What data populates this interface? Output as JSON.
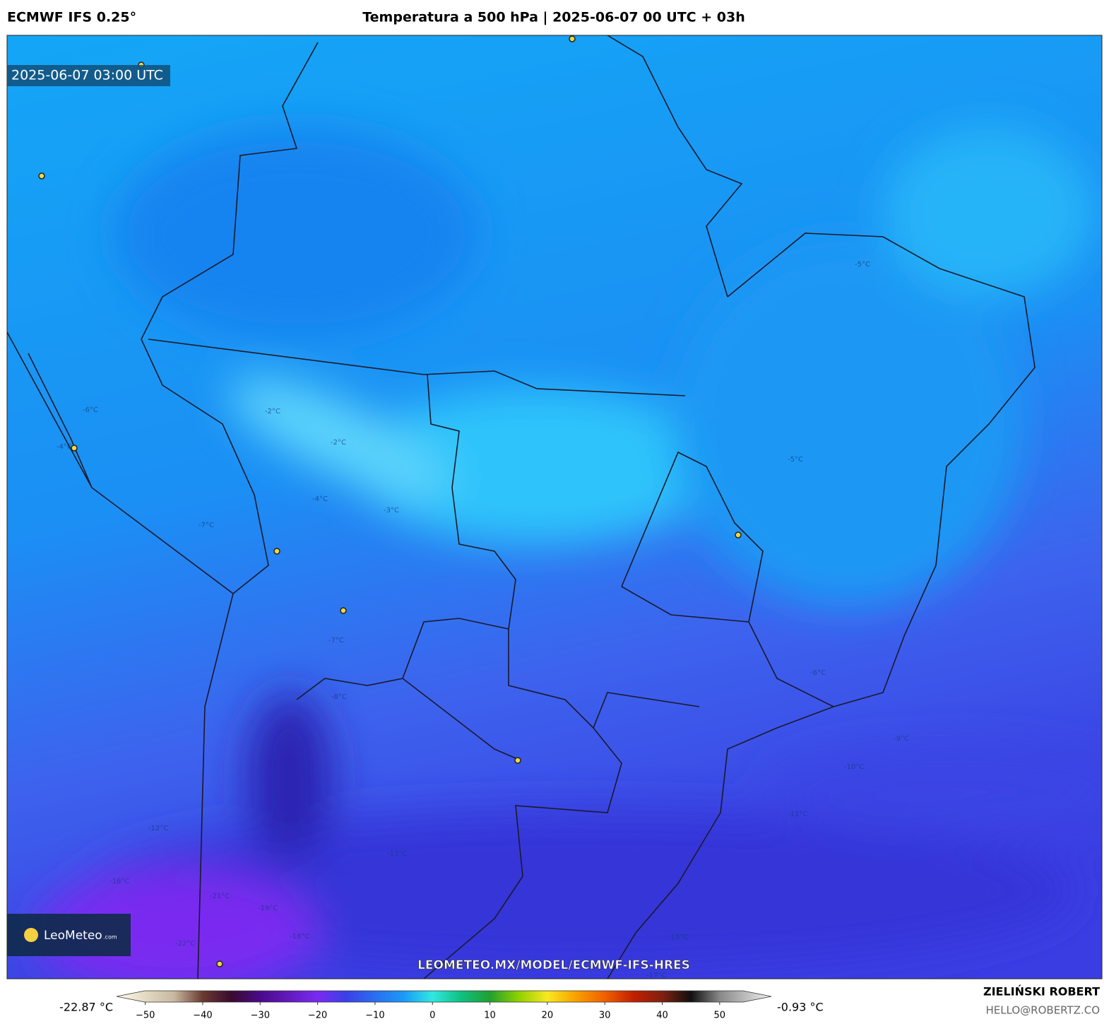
{
  "header": {
    "model": "ECMWF IFS 0.25°",
    "title": "Temperatura a 500 hPa | 2025-06-07 00 UTC + 03h"
  },
  "map": {
    "valid_time": "2025-06-07 03:00 UTC",
    "url": "LEOMETEO.MX/MODEL/ECMWF-IFS-HRES",
    "logo": {
      "name": "LeoMeteo",
      "suffix": ".com"
    },
    "contour_labels": [
      "-2°C",
      "-2°C",
      "-3°C",
      "-4°C",
      "-4°C",
      "-5°C",
      "-5°C",
      "-6°C",
      "-6°C",
      "-7°C",
      "-7°C",
      "-8°C",
      "-9°C",
      "-10°C",
      "-11°C",
      "-12°C",
      "-13°C",
      "-15°C",
      "-16°C",
      "-17°C",
      "-18°C",
      "-19°C",
      "-21°C",
      "-22°C"
    ]
  },
  "colorbar": {
    "min_label": "-22.87 °C",
    "max_label": "-0.93 °C",
    "lim": [
      -55,
      59
    ],
    "ticks": [
      {
        "value": -50,
        "label": "−50"
      },
      {
        "value": -40,
        "label": "−40"
      },
      {
        "value": -30,
        "label": "−30"
      },
      {
        "value": -20,
        "label": "−20"
      },
      {
        "value": -10,
        "label": "−10"
      },
      0,
      10,
      20,
      30,
      40,
      50
    ],
    "stops": [
      {
        "value": -55,
        "color": "#fffbe8"
      },
      {
        "value": -45,
        "color": "#c8b8a0"
      },
      {
        "value": -40,
        "color": "#6a3a30"
      },
      {
        "value": -35,
        "color": "#3a0a30"
      },
      {
        "value": -30,
        "color": "#4a0a8a"
      },
      {
        "value": -20,
        "color": "#7a2af0"
      },
      {
        "value": -15,
        "color": "#3a40e8"
      },
      {
        "value": -10,
        "color": "#2a6ef0"
      },
      {
        "value": -5,
        "color": "#1a9af8"
      },
      {
        "value": 0,
        "color": "#30e8e0"
      },
      {
        "value": 5,
        "color": "#10c080"
      },
      {
        "value": 10,
        "color": "#20a030"
      },
      {
        "value": 15,
        "color": "#90d000"
      },
      {
        "value": 20,
        "color": "#f8e820"
      },
      {
        "value": 25,
        "color": "#f8a000"
      },
      {
        "value": 30,
        "color": "#f06000"
      },
      {
        "value": 35,
        "color": "#c02000"
      },
      {
        "value": 40,
        "color": "#802010"
      },
      {
        "value": 45,
        "color": "#101010"
      },
      {
        "value": 50,
        "color": "#888888"
      },
      {
        "value": 59,
        "color": "#f0f0f0"
      }
    ]
  },
  "credit": {
    "author": "ZIELIŃSKI ROBERT",
    "email": "HELLO@ROBERTZ.CO"
  }
}
